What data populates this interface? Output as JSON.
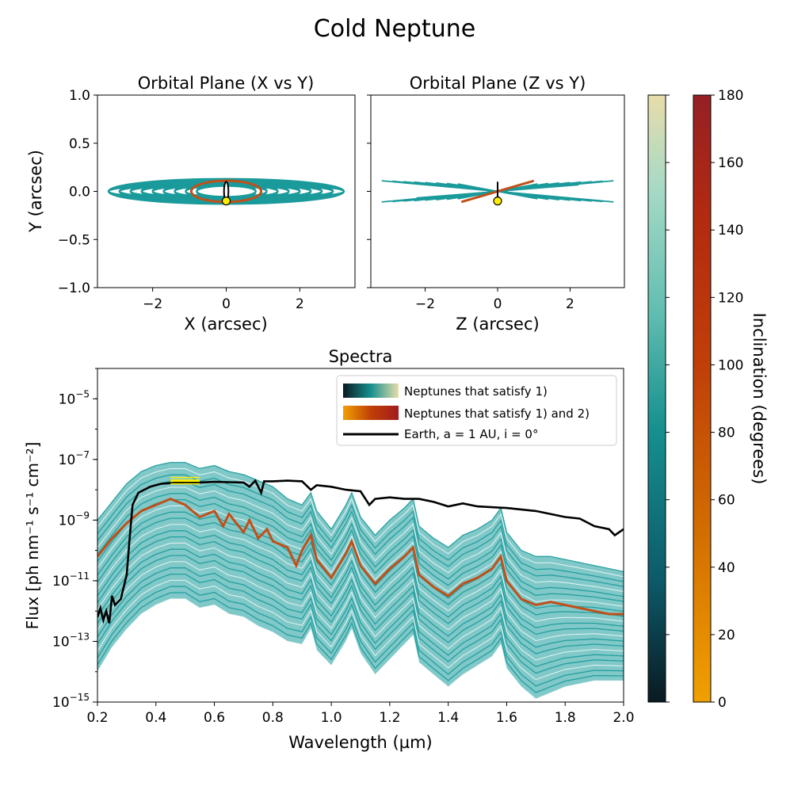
{
  "figure": {
    "title": "Cold Neptune"
  },
  "colors": {
    "teal": "#1a9a9a",
    "orbit_highlight": "#c0501a",
    "earth": "#000000",
    "star_marker": "#ffee00",
    "band": "#ffee00"
  },
  "chart_data": [
    {
      "type": "scatter",
      "name": "xy",
      "title": "Orbital Plane (X vs Y)",
      "xlabel": "X (arcsec)",
      "ylabel": "Y (arcsec)",
      "xlim": [
        -3.5,
        3.5
      ],
      "ylim": [
        -1.0,
        1.0
      ],
      "xticks": [
        -2,
        0,
        2
      ],
      "yticks": [
        -1.0,
        -0.5,
        0.0,
        0.5,
        1.0
      ],
      "xticklabels": [
        "−2",
        "0",
        "2"
      ],
      "yticklabels": [
        "−1.0",
        "−0.5",
        "0.0",
        "0.5",
        "1.0"
      ],
      "orbits_teal_semimajor": [
        3.2,
        2.9,
        2.6,
        2.3,
        2.0,
        1.7,
        1.4,
        1.1,
        0.8
      ],
      "orbit_highlight": {
        "a": 0.95,
        "b": 0.11
      },
      "orbit_earth": {
        "a": 0.1,
        "b": 0.1
      },
      "planet_position": [
        0.0,
        -0.1
      ]
    },
    {
      "type": "scatter",
      "name": "zy",
      "title": "Orbital Plane (Z vs Y)",
      "xlabel": "Z (arcsec)",
      "ylabel": "",
      "xlim": [
        -3.5,
        3.5
      ],
      "ylim": [
        -1.0,
        1.0
      ],
      "xticks": [
        -2,
        0,
        2
      ],
      "xticklabels": [
        "−2",
        "0",
        "2"
      ],
      "lines_teal_extent": [
        3.2,
        2.9,
        2.6,
        2.3,
        2.0,
        1.7,
        1.4,
        1.1
      ],
      "highlight_line": {
        "z": [
          -1.0,
          1.0
        ],
        "y": [
          -0.11,
          0.11
        ]
      },
      "earth_line": {
        "z": [
          0.0,
          0.0
        ],
        "y": [
          -0.1,
          0.1
        ]
      },
      "planet_position": [
        0.0,
        -0.1
      ]
    },
    {
      "type": "line",
      "name": "spectra",
      "title": "Spectra",
      "xlabel": "Wavelength (µm)",
      "ylabel": "Flux [ph nm⁻¹ s⁻¹ cm⁻²]",
      "xlim": [
        0.2,
        2.0
      ],
      "ylim_log10": [
        -15,
        -4
      ],
      "xticks": [
        0.2,
        0.4,
        0.6,
        0.8,
        1.0,
        1.2,
        1.4,
        1.6,
        1.8,
        2.0
      ],
      "xticklabels": [
        "0.2",
        "0.4",
        "0.6",
        "0.8",
        "1.0",
        "1.2",
        "1.4",
        "1.6",
        "1.8",
        "2.0"
      ],
      "yticks_log10": [
        -15,
        -13,
        -11,
        -9,
        -7,
        -5
      ],
      "ytick_exponents": [
        "−15",
        "−13",
        "−11",
        "−9",
        "−7",
        "−5"
      ],
      "legend": {
        "position": "top-right",
        "entries": [
          "Neptunes that satisfy 1)",
          "Neptunes that satisfy 1) and 2)",
          "Earth, a = 1 AU, i = 0°"
        ]
      },
      "earth_spectrum": {
        "x": [
          0.2,
          0.21,
          0.22,
          0.23,
          0.24,
          0.25,
          0.26,
          0.28,
          0.3,
          0.31,
          0.32,
          0.34,
          0.36,
          0.38,
          0.4,
          0.42,
          0.45,
          0.5,
          0.55,
          0.6,
          0.65,
          0.7,
          0.72,
          0.74,
          0.76,
          0.77,
          0.8,
          0.85,
          0.9,
          0.93,
          0.95,
          1.0,
          1.05,
          1.1,
          1.13,
          1.15,
          1.2,
          1.25,
          1.3,
          1.35,
          1.4,
          1.45,
          1.5,
          1.6,
          1.7,
          1.8,
          1.85,
          1.9,
          1.95,
          1.97,
          2.0
        ],
        "y_log10": [
          -12.2,
          -11.9,
          -12.3,
          -12.0,
          -12.4,
          -11.5,
          -11.8,
          -11.6,
          -10.8,
          -9.6,
          -8.5,
          -8.1,
          -8.0,
          -7.9,
          -7.85,
          -7.8,
          -7.78,
          -7.75,
          -7.76,
          -7.74,
          -7.75,
          -7.76,
          -7.9,
          -7.7,
          -8.1,
          -7.72,
          -7.72,
          -7.7,
          -7.72,
          -8.0,
          -7.85,
          -7.9,
          -8.0,
          -8.05,
          -8.5,
          -8.3,
          -8.25,
          -8.3,
          -8.3,
          -8.4,
          -8.55,
          -8.45,
          -8.55,
          -8.6,
          -8.7,
          -8.9,
          -8.95,
          -9.2,
          -9.3,
          -9.5,
          -9.3
        ]
      },
      "highlight_spectrum": {
        "x": [
          0.2,
          0.25,
          0.3,
          0.35,
          0.4,
          0.45,
          0.5,
          0.55,
          0.6,
          0.63,
          0.65,
          0.7,
          0.72,
          0.75,
          0.78,
          0.8,
          0.85,
          0.88,
          0.9,
          0.93,
          0.95,
          1.0,
          1.05,
          1.07,
          1.1,
          1.15,
          1.2,
          1.25,
          1.28,
          1.3,
          1.35,
          1.4,
          1.45,
          1.5,
          1.55,
          1.58,
          1.6,
          1.65,
          1.7,
          1.75,
          1.8,
          1.85,
          1.9,
          1.95,
          2.0
        ],
        "y_log10": [
          -10.2,
          -9.6,
          -9.1,
          -8.7,
          -8.5,
          -8.3,
          -8.5,
          -8.9,
          -8.7,
          -9.2,
          -8.8,
          -9.4,
          -9.0,
          -9.6,
          -9.3,
          -9.7,
          -9.9,
          -10.5,
          -10.0,
          -9.5,
          -10.3,
          -10.9,
          -10.1,
          -9.7,
          -10.5,
          -11.1,
          -10.6,
          -10.2,
          -9.9,
          -10.8,
          -11.2,
          -11.5,
          -11.1,
          -10.9,
          -10.6,
          -10.2,
          -11.0,
          -11.6,
          -11.8,
          -11.7,
          -11.8,
          -11.9,
          -12.0,
          -12.1,
          -12.1
        ]
      },
      "envelope": {
        "x": [
          0.2,
          0.25,
          0.3,
          0.35,
          0.4,
          0.45,
          0.5,
          0.55,
          0.6,
          0.65,
          0.7,
          0.75,
          0.8,
          0.85,
          0.9,
          0.93,
          0.95,
          1.0,
          1.05,
          1.07,
          1.1,
          1.15,
          1.2,
          1.25,
          1.28,
          1.3,
          1.35,
          1.4,
          1.45,
          1.5,
          1.55,
          1.58,
          1.6,
          1.65,
          1.7,
          1.75,
          1.8,
          1.85,
          1.9,
          1.95,
          2.0
        ],
        "upper_log10": [
          -9.0,
          -8.4,
          -7.8,
          -7.4,
          -7.2,
          -7.1,
          -7.1,
          -7.3,
          -7.2,
          -7.4,
          -7.5,
          -7.7,
          -7.9,
          -8.3,
          -8.5,
          -8.1,
          -8.7,
          -9.3,
          -8.5,
          -8.1,
          -8.9,
          -9.5,
          -9.0,
          -8.6,
          -8.3,
          -9.2,
          -9.6,
          -9.9,
          -9.5,
          -9.3,
          -9.0,
          -8.6,
          -9.4,
          -10.0,
          -10.2,
          -10.2,
          -10.3,
          -10.4,
          -10.5,
          -10.6,
          -10.7
        ],
        "lower_log10": [
          -14.0,
          -13.2,
          -12.6,
          -12.1,
          -11.8,
          -11.6,
          -11.6,
          -11.9,
          -11.8,
          -12.1,
          -12.2,
          -12.5,
          -12.7,
          -13.0,
          -13.1,
          -12.6,
          -13.3,
          -13.8,
          -13.0,
          -12.6,
          -13.4,
          -14.1,
          -13.6,
          -13.1,
          -12.8,
          -13.7,
          -14.1,
          -14.5,
          -14.1,
          -13.8,
          -13.5,
          -13.1,
          -13.9,
          -14.5,
          -14.9,
          -14.7,
          -14.5,
          -14.4,
          -14.3,
          -14.3,
          -14.3
        ]
      },
      "band": {
        "x": [
          0.45,
          0.55
        ],
        "y_log10": -7.7
      }
    },
    {
      "type": "heatmap",
      "name": "colorbar_teal",
      "range": [
        0,
        180
      ],
      "colors": [
        "#0a1a22",
        "#0c5a6a",
        "#16908f",
        "#64bfb2",
        "#a8dac6",
        "#e8dcaa"
      ]
    },
    {
      "type": "heatmap",
      "name": "colorbar_orange",
      "title": "Inclination (degrees)",
      "range": [
        0,
        180
      ],
      "ticks": [
        0,
        20,
        40,
        60,
        80,
        100,
        120,
        140,
        160,
        180
      ],
      "ticklabels": [
        "0",
        "20",
        "40",
        "60",
        "80",
        "100",
        "120",
        "140",
        "160",
        "180"
      ],
      "colors": [
        "#f0a000",
        "#d06a00",
        "#c04008",
        "#b22a10",
        "#a21a1e",
        "#952024"
      ]
    }
  ]
}
